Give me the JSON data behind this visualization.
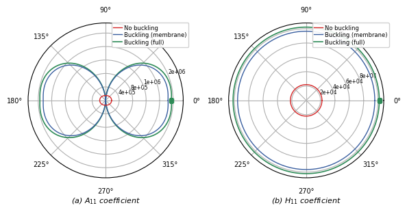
{
  "plot_A": {
    "title": "(a) $A_{11}$ coefficient",
    "rmax": 2300000.0,
    "rtick_vals": [
      400000.0,
      800000.0,
      1200000.0,
      1600000.0,
      2000000.0
    ],
    "rtick_labs": [
      "4e+05",
      "8e+05",
      "1e+06",
      "",
      "2e+06"
    ],
    "no_buck_r": 150000.0,
    "membrane_scale": 1850000.0,
    "full_scale": 1950000.0,
    "dot_r": 1950000.0
  },
  "plot_H": {
    "title": "(b) $H_{11}$ coefficient",
    "rmax": 108000.0,
    "rtick_vals": [
      20000.0,
      40000.0,
      60000.0,
      80000.0,
      100000.0
    ],
    "rtick_labs": [
      "2e+04",
      "4e+04",
      "6e+04",
      "8e+04",
      ""
    ],
    "no_buck_r": 22000.0,
    "membrane_scale": 96000.0,
    "full_scale": 102000.0,
    "dot_r": 102000.0
  },
  "legend_labels": [
    "No buckling",
    "Buckling (membrane)",
    "Buckling (full)"
  ],
  "color_no_buck": "#d62728",
  "color_membrane": "#3a5fa0",
  "color_full": "#2e8b57",
  "theta_labels_A": [
    "0°",
    "",
    "90°",
    "135°",
    "180°",
    "225°",
    "270°",
    "315°"
  ],
  "theta_labels_H": [
    "0°",
    "",
    "90°",
    "135°",
    "180°",
    "225°",
    "270°",
    "315°"
  ],
  "background": "#ffffff"
}
